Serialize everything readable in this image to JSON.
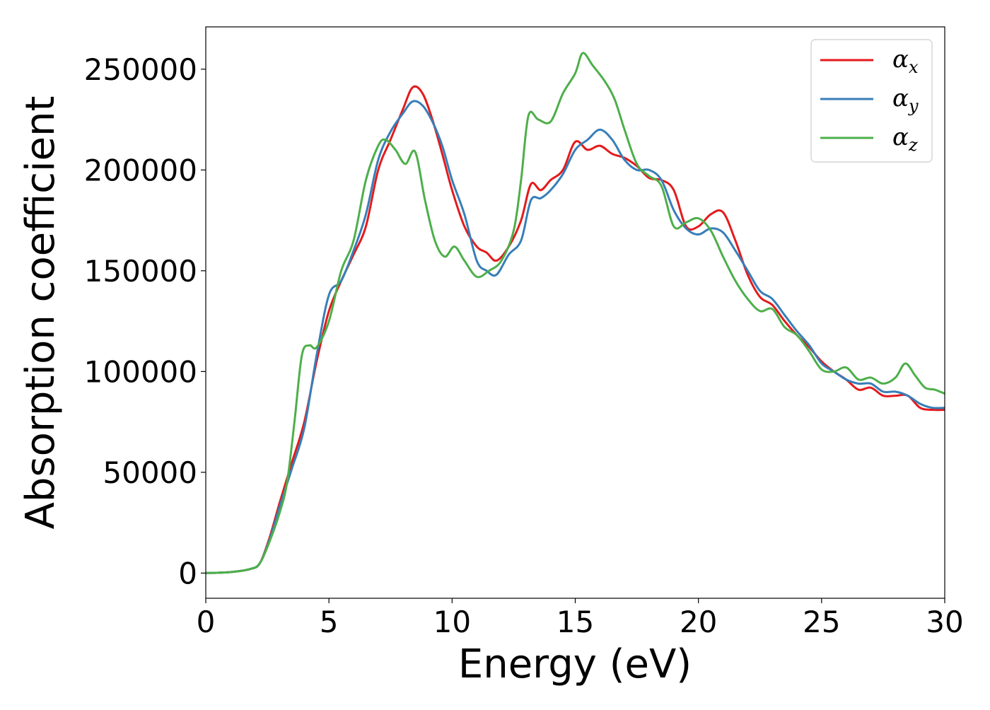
{
  "chart_data": {
    "type": "line",
    "title": "",
    "xlabel": "Energy (eV)",
    "ylabel": "Absorption coefficient",
    "xlim": [
      0,
      30
    ],
    "ylim": [
      -12500,
      271000
    ],
    "x_ticks": [
      0,
      5,
      10,
      15,
      20,
      25,
      30
    ],
    "x_tick_labels": [
      "0",
      "5",
      "10",
      "15",
      "20",
      "25",
      "30"
    ],
    "y_ticks": [
      0,
      50000,
      100000,
      150000,
      200000,
      250000
    ],
    "y_tick_labels": [
      "0",
      "50000",
      "100000",
      "150000",
      "200000",
      "250000"
    ],
    "grid": false,
    "legend_position": "top-right",
    "series": [
      {
        "name": "α",
        "subscript": "x",
        "color": "#e41a1c",
        "points": [
          [
            0,
            0
          ],
          [
            1,
            500
          ],
          [
            1.8,
            2000
          ],
          [
            2.2,
            5000
          ],
          [
            2.6,
            18000
          ],
          [
            3.0,
            35000
          ],
          [
            3.5,
            55000
          ],
          [
            4.0,
            75000
          ],
          [
            4.5,
            105000
          ],
          [
            5.0,
            130000
          ],
          [
            5.5,
            145000
          ],
          [
            6.0,
            158000
          ],
          [
            6.5,
            172000
          ],
          [
            7.0,
            200000
          ],
          [
            7.5,
            215000
          ],
          [
            8.0,
            230000
          ],
          [
            8.4,
            241000
          ],
          [
            8.8,
            238000
          ],
          [
            9.2,
            225000
          ],
          [
            9.6,
            208000
          ],
          [
            10.0,
            190000
          ],
          [
            10.5,
            172000
          ],
          [
            11.0,
            162000
          ],
          [
            11.4,
            159000
          ],
          [
            11.8,
            155000
          ],
          [
            12.3,
            162000
          ],
          [
            12.8,
            175000
          ],
          [
            13.2,
            193000
          ],
          [
            13.6,
            190000
          ],
          [
            14.0,
            195000
          ],
          [
            14.5,
            200000
          ],
          [
            15.0,
            214000
          ],
          [
            15.5,
            210000
          ],
          [
            16.0,
            212000
          ],
          [
            16.5,
            208000
          ],
          [
            17.0,
            206000
          ],
          [
            17.5,
            202000
          ],
          [
            18.0,
            196000
          ],
          [
            18.5,
            195000
          ],
          [
            19.0,
            190000
          ],
          [
            19.5,
            172000
          ],
          [
            20.0,
            172000
          ],
          [
            20.5,
            178000
          ],
          [
            21.0,
            179000
          ],
          [
            21.5,
            165000
          ],
          [
            22.0,
            148000
          ],
          [
            22.5,
            137000
          ],
          [
            23.0,
            133000
          ],
          [
            23.5,
            125000
          ],
          [
            24.0,
            118000
          ],
          [
            24.5,
            112000
          ],
          [
            25.0,
            105000
          ],
          [
            25.5,
            100000
          ],
          [
            26.0,
            96000
          ],
          [
            26.5,
            91000
          ],
          [
            27.0,
            92000
          ],
          [
            27.5,
            88000
          ],
          [
            28.0,
            88000
          ],
          [
            28.5,
            88000
          ],
          [
            29.0,
            82000
          ],
          [
            29.5,
            81000
          ],
          [
            30.0,
            81000
          ]
        ]
      },
      {
        "name": "α",
        "subscript": "y",
        "color": "#377eb8",
        "points": [
          [
            0,
            0
          ],
          [
            1,
            500
          ],
          [
            1.8,
            2000
          ],
          [
            2.2,
            5000
          ],
          [
            2.6,
            17000
          ],
          [
            3.0,
            33000
          ],
          [
            3.5,
            52000
          ],
          [
            4.0,
            72000
          ],
          [
            4.5,
            108000
          ],
          [
            5.0,
            138000
          ],
          [
            5.5,
            145000
          ],
          [
            6.0,
            160000
          ],
          [
            6.5,
            178000
          ],
          [
            7.0,
            205000
          ],
          [
            7.5,
            219000
          ],
          [
            8.0,
            228000
          ],
          [
            8.4,
            234000
          ],
          [
            8.8,
            232000
          ],
          [
            9.2,
            224000
          ],
          [
            9.6,
            212000
          ],
          [
            10.0,
            195000
          ],
          [
            10.5,
            178000
          ],
          [
            11.0,
            155000
          ],
          [
            11.4,
            150000
          ],
          [
            11.8,
            148000
          ],
          [
            12.3,
            158000
          ],
          [
            12.8,
            165000
          ],
          [
            13.2,
            185000
          ],
          [
            13.6,
            186000
          ],
          [
            14.0,
            190000
          ],
          [
            14.5,
            198000
          ],
          [
            15.0,
            210000
          ],
          [
            15.5,
            215000
          ],
          [
            16.0,
            220000
          ],
          [
            16.5,
            215000
          ],
          [
            17.0,
            205000
          ],
          [
            17.5,
            200000
          ],
          [
            18.0,
            200000
          ],
          [
            18.5,
            195000
          ],
          [
            19.0,
            180000
          ],
          [
            19.5,
            171000
          ],
          [
            20.0,
            168000
          ],
          [
            20.5,
            171000
          ],
          [
            21.0,
            169000
          ],
          [
            21.5,
            160000
          ],
          [
            22.0,
            150000
          ],
          [
            22.5,
            140000
          ],
          [
            23.0,
            136000
          ],
          [
            23.5,
            128000
          ],
          [
            24.0,
            120000
          ],
          [
            24.5,
            113000
          ],
          [
            25.0,
            104000
          ],
          [
            25.5,
            100000
          ],
          [
            26.0,
            96000
          ],
          [
            26.5,
            94000
          ],
          [
            27.0,
            94000
          ],
          [
            27.5,
            90000
          ],
          [
            28.0,
            90000
          ],
          [
            28.5,
            88000
          ],
          [
            29.0,
            84000
          ],
          [
            29.5,
            82000
          ],
          [
            30.0,
            82000
          ]
        ]
      },
      {
        "name": "α",
        "subscript": "z",
        "color": "#4daf4a",
        "points": [
          [
            0,
            0
          ],
          [
            1,
            500
          ],
          [
            1.8,
            2000
          ],
          [
            2.2,
            5000
          ],
          [
            2.6,
            16000
          ],
          [
            3.0,
            30000
          ],
          [
            3.3,
            45000
          ],
          [
            3.6,
            75000
          ],
          [
            3.9,
            108000
          ],
          [
            4.2,
            113000
          ],
          [
            4.5,
            112000
          ],
          [
            5.0,
            125000
          ],
          [
            5.5,
            150000
          ],
          [
            6.0,
            165000
          ],
          [
            6.5,
            195000
          ],
          [
            7.0,
            212000
          ],
          [
            7.3,
            215000
          ],
          [
            7.7,
            210000
          ],
          [
            8.1,
            203000
          ],
          [
            8.5,
            209000
          ],
          [
            8.9,
            185000
          ],
          [
            9.3,
            165000
          ],
          [
            9.7,
            157000
          ],
          [
            10.1,
            162000
          ],
          [
            10.5,
            155000
          ],
          [
            11.0,
            147000
          ],
          [
            11.5,
            150000
          ],
          [
            12.0,
            155000
          ],
          [
            12.5,
            170000
          ],
          [
            12.8,
            195000
          ],
          [
            13.1,
            227000
          ],
          [
            13.5,
            225000
          ],
          [
            14.0,
            224000
          ],
          [
            14.5,
            238000
          ],
          [
            15.0,
            248000
          ],
          [
            15.3,
            258000
          ],
          [
            15.7,
            252000
          ],
          [
            16.2,
            244000
          ],
          [
            16.6,
            235000
          ],
          [
            17.0,
            220000
          ],
          [
            17.5,
            203000
          ],
          [
            18.0,
            197000
          ],
          [
            18.5,
            192000
          ],
          [
            19.0,
            172000
          ],
          [
            19.5,
            174000
          ],
          [
            20.0,
            176000
          ],
          [
            20.5,
            170000
          ],
          [
            21.0,
            157000
          ],
          [
            21.5,
            145000
          ],
          [
            22.0,
            136000
          ],
          [
            22.5,
            130000
          ],
          [
            23.0,
            131000
          ],
          [
            23.5,
            122000
          ],
          [
            24.0,
            118000
          ],
          [
            24.5,
            110000
          ],
          [
            25.0,
            101000
          ],
          [
            25.5,
            100000
          ],
          [
            26.0,
            102000
          ],
          [
            26.5,
            96000
          ],
          [
            27.0,
            97000
          ],
          [
            27.5,
            94000
          ],
          [
            28.0,
            97000
          ],
          [
            28.4,
            104000
          ],
          [
            28.8,
            98000
          ],
          [
            29.2,
            92000
          ],
          [
            29.6,
            91000
          ],
          [
            30.0,
            89000
          ]
        ]
      }
    ]
  }
}
